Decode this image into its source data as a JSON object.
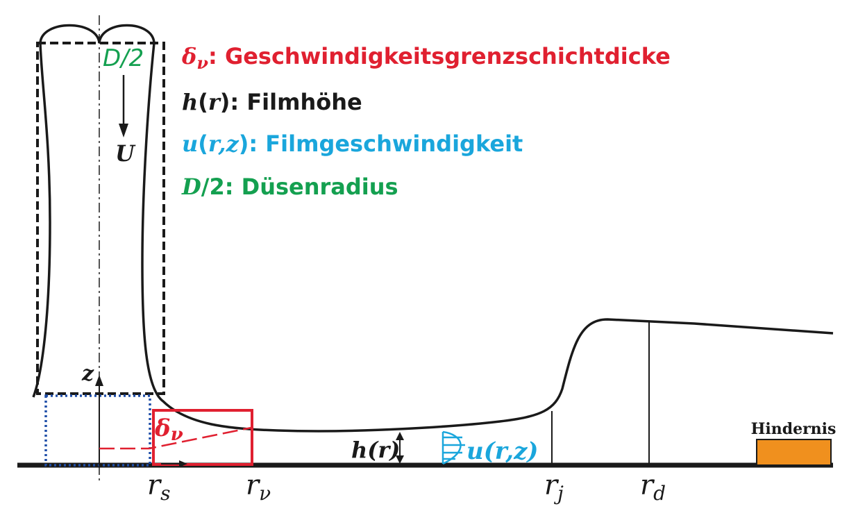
{
  "colors": {
    "red": "#e02030",
    "black": "#1a1a1a",
    "cyan": "#1aa6dc",
    "green": "#14a050",
    "blue_dotted": "#1f4ea8",
    "obstacle": "#f0901e"
  },
  "legend": {
    "delta": {
      "symbol": "δ",
      "sub": "ν",
      "text": ": Geschwindigkeitsgrenzschichtdicke"
    },
    "h": {
      "symbol": "h",
      "paren_open": "(",
      "arg": "r",
      "paren_close": ")",
      "text": ": Filmhöhe"
    },
    "u": {
      "symbol": "u",
      "paren_open": "(",
      "arg": "r,z",
      "paren_close": ")",
      "text": ": Filmgeschwindigkeit"
    },
    "d": {
      "symbol": "D",
      "rest": "/2",
      "text": ": Düsenradius"
    }
  },
  "labels": {
    "nozzle_radius": "D/2",
    "jet_velocity": "U",
    "z_axis": "z",
    "delta_symbol": "δ",
    "delta_sub": "ν",
    "h_label": "h(r)",
    "u_label": "u(r,z)",
    "obstacle": "Hindernis"
  },
  "ticks": [
    {
      "main": "r",
      "sub": "s"
    },
    {
      "main": "r",
      "sub": "ν"
    },
    {
      "main": "r",
      "sub": "j"
    },
    {
      "main": "r",
      "sub": "d"
    }
  ]
}
